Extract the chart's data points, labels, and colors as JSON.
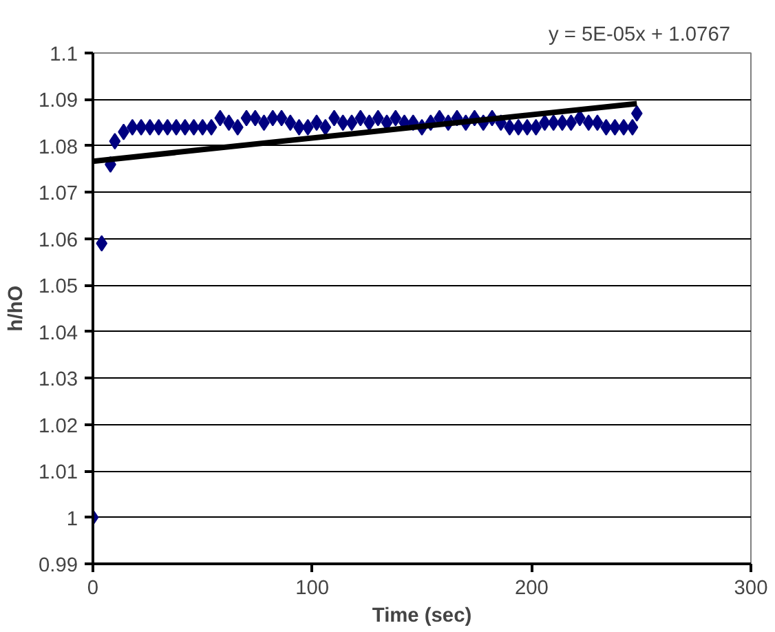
{
  "chart_data": {
    "type": "scatter",
    "xlabel": "Time (sec)",
    "ylabel": "h/hO",
    "xlim": [
      0,
      300
    ],
    "xticks": [
      0,
      100,
      200,
      300
    ],
    "ylim": [
      0.99,
      1.1
    ],
    "yticks": [
      0.99,
      1,
      1.01,
      1.02,
      1.03,
      1.04,
      1.05,
      1.06,
      1.07,
      1.08,
      1.09,
      {
        "value": 1.1,
        "label": "1.1"
      }
    ],
    "grid": "y",
    "annotations": [
      "y = 5E-05x + 1.0767"
    ],
    "series": [
      {
        "marker": "diamond",
        "color": "#000080",
        "x": [
          0,
          4,
          8,
          10,
          14,
          18,
          22,
          26,
          30,
          34,
          38,
          42,
          46,
          50,
          54,
          58,
          62,
          66,
          70,
          74,
          78,
          82,
          86,
          90,
          94,
          98,
          102,
          106,
          110,
          114,
          118,
          122,
          126,
          130,
          134,
          138,
          142,
          146,
          150,
          154,
          158,
          162,
          166,
          170,
          174,
          178,
          182,
          186,
          190,
          194,
          198,
          202,
          206,
          210,
          214,
          218,
          222,
          226,
          230,
          234,
          238,
          242,
          246,
          248
        ],
        "values": [
          1.0,
          1.059,
          1.076,
          1.081,
          1.083,
          1.084,
          1.084,
          1.084,
          1.084,
          1.084,
          1.084,
          1.084,
          1.084,
          1.084,
          1.084,
          1.086,
          1.085,
          1.084,
          1.086,
          1.086,
          1.085,
          1.086,
          1.086,
          1.085,
          1.084,
          1.084,
          1.085,
          1.084,
          1.086,
          1.085,
          1.085,
          1.086,
          1.085,
          1.086,
          1.085,
          1.086,
          1.085,
          1.085,
          1.084,
          1.085,
          1.086,
          1.085,
          1.086,
          1.085,
          1.086,
          1.085,
          1.086,
          1.085,
          1.084,
          1.084,
          1.084,
          1.084,
          1.085,
          1.085,
          1.085,
          1.085,
          1.086,
          1.085,
          1.085,
          1.084,
          1.084,
          1.084,
          1.084,
          1.087
        ]
      },
      {
        "type": "line",
        "color": "#000000",
        "x": [
          0,
          248
        ],
        "values": [
          1.0767,
          1.0891
        ]
      }
    ]
  }
}
